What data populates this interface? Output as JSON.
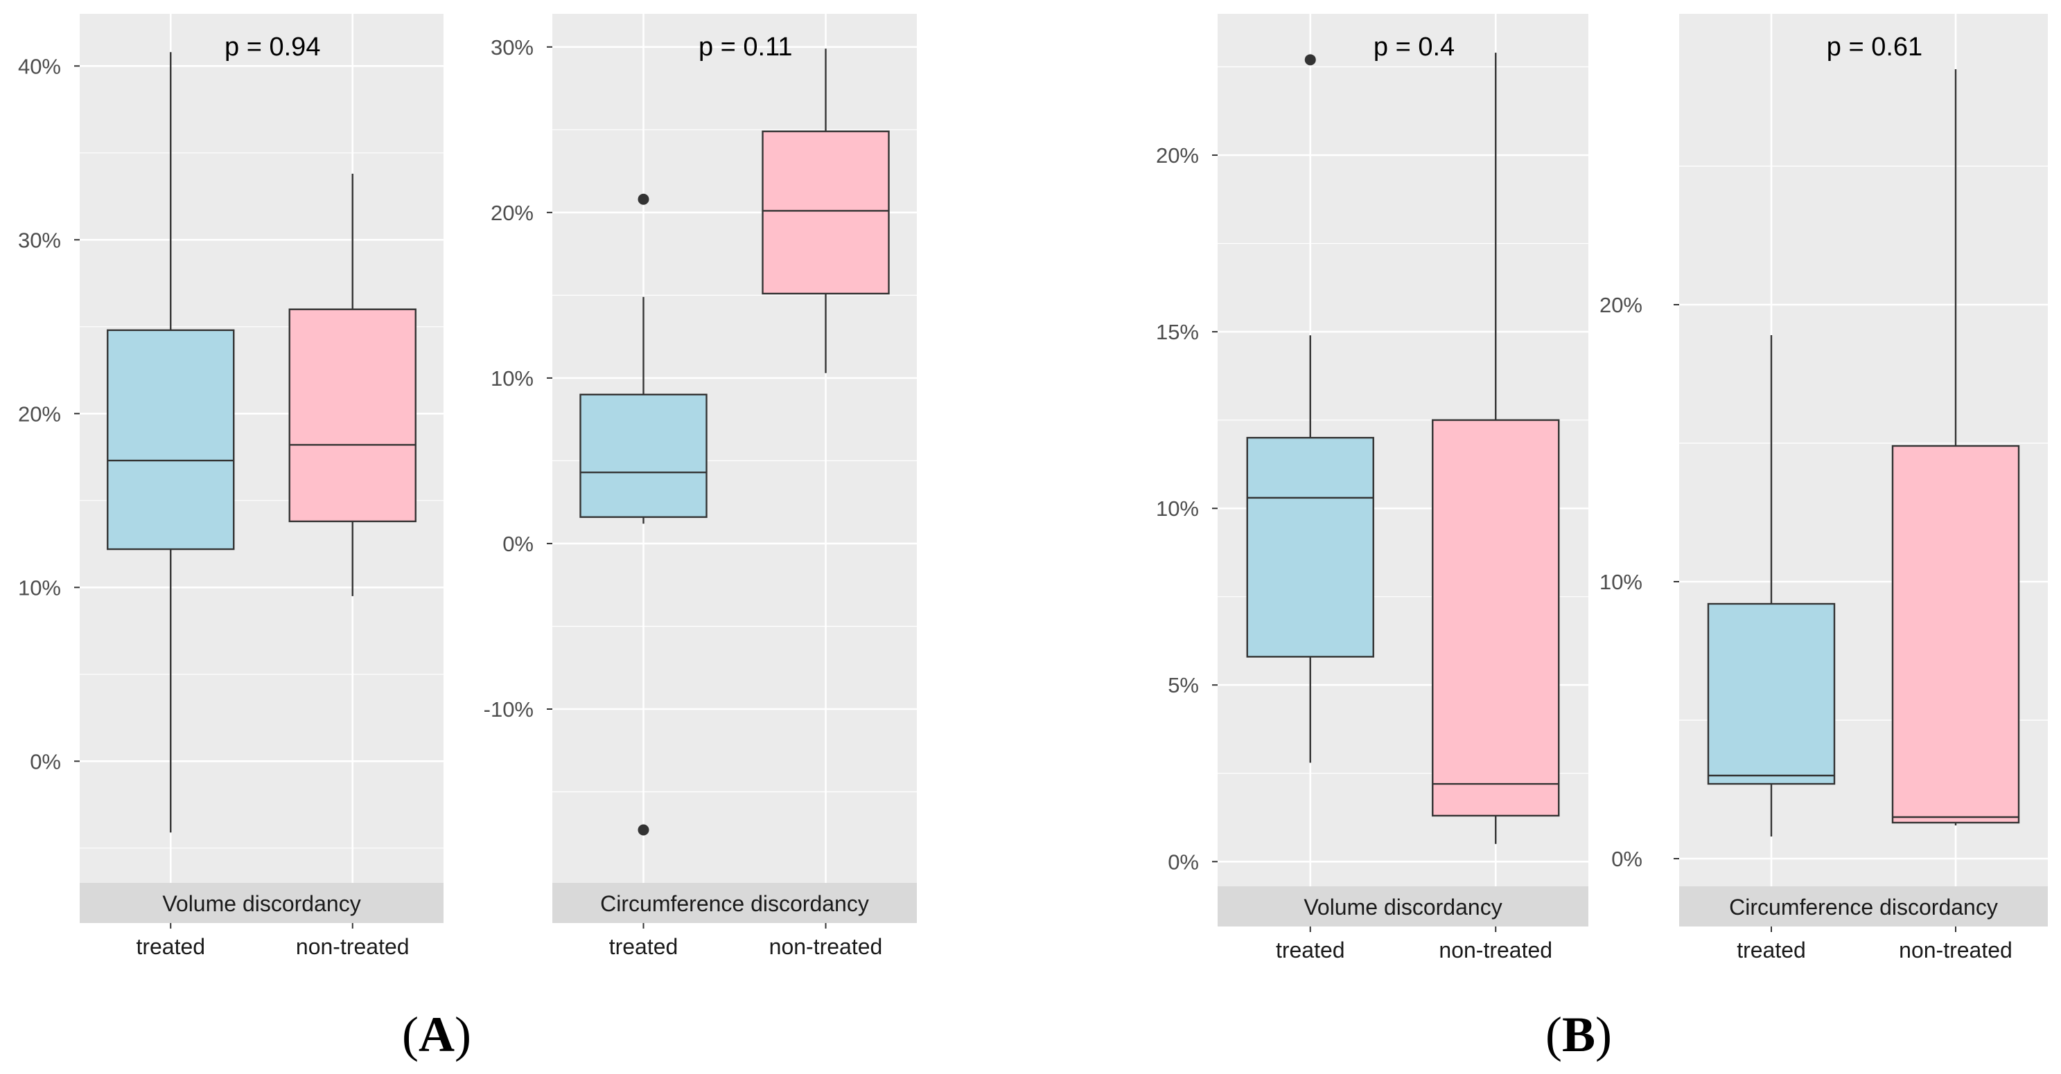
{
  "figure_labels": [
    {
      "open": "(",
      "letter": "A",
      "close": ")"
    },
    {
      "open": "(",
      "letter": "B",
      "close": ")"
    }
  ],
  "colors": {
    "treated": "#add8e6",
    "non_treated": "#ffc0cb",
    "panel_bg": "#ebebeb",
    "strip_bg": "#d9d9d9"
  },
  "chart_data": [
    {
      "type": "boxplot",
      "group": "A",
      "strip": "Volume discordancy",
      "annotation": "p = 0.94",
      "ylim": [
        -0.07,
        0.43
      ],
      "y_breaks": [
        0,
        0.1,
        0.2,
        0.3,
        0.4
      ],
      "y_tick_labels": [
        "0%",
        "10%",
        "20%",
        "30%",
        "40%"
      ],
      "categories": [
        "treated",
        "non-treated"
      ],
      "boxes": [
        {
          "name": "treated",
          "lower": -0.041,
          "q1": 0.122,
          "median": 0.173,
          "q3": 0.248,
          "upper": 0.408,
          "outliers": []
        },
        {
          "name": "non-treated",
          "lower": 0.095,
          "q1": 0.138,
          "median": 0.182,
          "q3": 0.26,
          "upper": 0.338,
          "outliers": []
        }
      ]
    },
    {
      "type": "boxplot",
      "group": "A",
      "strip": "Circumference discordancy",
      "annotation": "p = 0.11",
      "ylim": [
        -0.205,
        0.32
      ],
      "y_breaks": [
        -0.1,
        0,
        0.1,
        0.2,
        0.3
      ],
      "y_tick_labels": [
        "-10%",
        "0%",
        "10%",
        "20%",
        "30%"
      ],
      "categories": [
        "treated",
        "non-treated"
      ],
      "boxes": [
        {
          "name": "treated",
          "lower": 0.012,
          "q1": 0.016,
          "median": 0.043,
          "q3": 0.09,
          "upper": 0.149,
          "outliers": [
            0.208,
            -0.173
          ]
        },
        {
          "name": "non-treated",
          "lower": 0.103,
          "q1": 0.151,
          "median": 0.201,
          "q3": 0.249,
          "upper": 0.299,
          "outliers": []
        }
      ]
    },
    {
      "type": "boxplot",
      "group": "B",
      "strip": "Volume discordancy",
      "annotation": "p = 0.4",
      "ylim": [
        -0.007,
        0.24
      ],
      "y_breaks": [
        0,
        0.05,
        0.1,
        0.15,
        0.2
      ],
      "y_tick_labels": [
        "0%",
        "5%",
        "10%",
        "15%",
        "20%"
      ],
      "categories": [
        "treated",
        "non-treated"
      ],
      "boxes": [
        {
          "name": "treated",
          "lower": 0.028,
          "q1": 0.058,
          "median": 0.103,
          "q3": 0.12,
          "upper": 0.149,
          "outliers": [
            0.227
          ]
        },
        {
          "name": "non-treated",
          "lower": 0.005,
          "q1": 0.013,
          "median": 0.022,
          "q3": 0.125,
          "upper": 0.229,
          "outliers": []
        }
      ]
    },
    {
      "type": "boxplot",
      "group": "B",
      "strip": "Circumference discordancy",
      "annotation": "p = 0.61",
      "ylim": [
        -0.01,
        0.305
      ],
      "y_breaks": [
        0,
        0.1,
        0.2
      ],
      "y_tick_labels": [
        "0%",
        "10%",
        "20%"
      ],
      "categories": [
        "treated",
        "non-treated"
      ],
      "boxes": [
        {
          "name": "treated",
          "lower": 0.008,
          "q1": 0.027,
          "median": 0.03,
          "q3": 0.092,
          "upper": 0.189,
          "outliers": []
        },
        {
          "name": "non-treated",
          "lower": 0.012,
          "q1": 0.013,
          "median": 0.015,
          "q3": 0.149,
          "upper": 0.285,
          "outliers": []
        }
      ]
    }
  ]
}
